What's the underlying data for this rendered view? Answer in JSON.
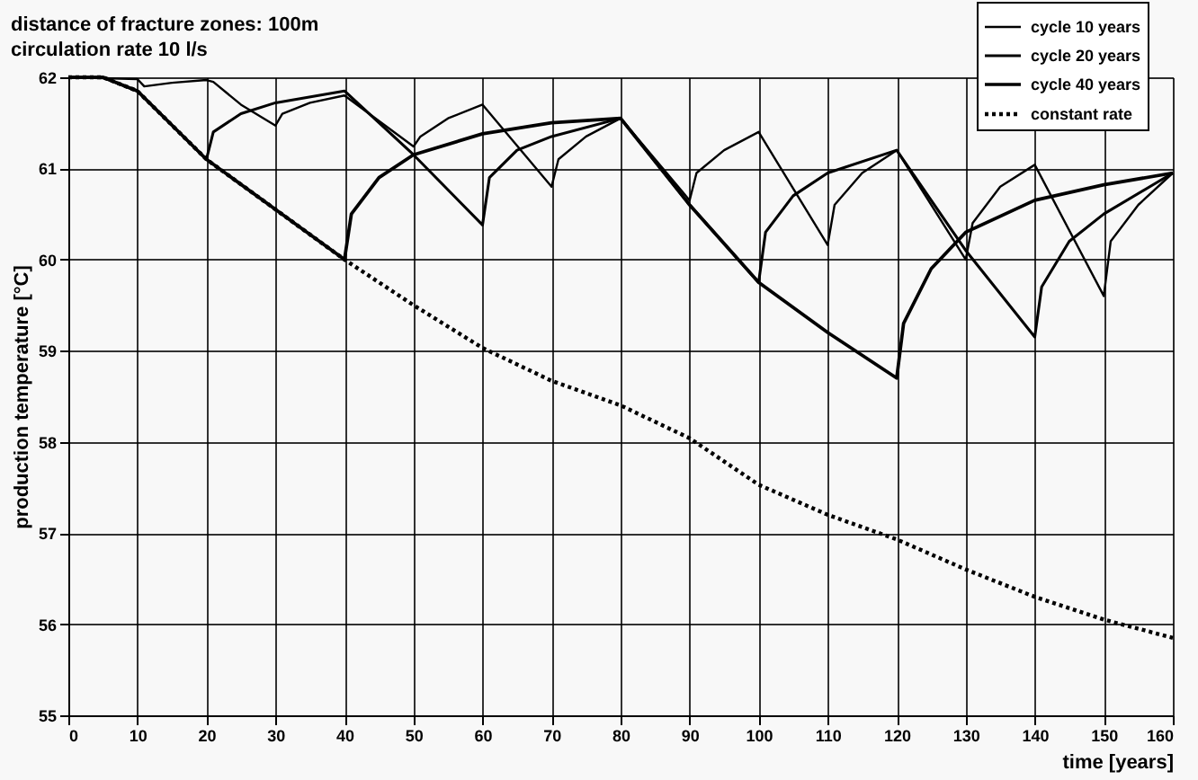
{
  "chart_data": {
    "type": "line",
    "title": "distance of fracture zones: 100m",
    "subtitle": "circulation rate 10 l/s",
    "xlabel": "time [years]",
    "ylabel": "production temperature [°C]",
    "xlim": [
      0,
      160
    ],
    "xticks": [
      0,
      10,
      20,
      30,
      40,
      50,
      60,
      70,
      80,
      90,
      100,
      110,
      120,
      130,
      140,
      150,
      160
    ],
    "ylim": [
      55,
      62
    ],
    "yticks": [
      55,
      56,
      57,
      58,
      59,
      60,
      61,
      62
    ],
    "grid": true,
    "legend": "top right",
    "marker": "none",
    "series": [
      {
        "name": "cycle 10 years",
        "color": "#000000",
        "line_style": "solid",
        "x": [
          0,
          10,
          11,
          15,
          20,
          21,
          25,
          30,
          31,
          35,
          40,
          50,
          51,
          55,
          60,
          70,
          71,
          75,
          80,
          90,
          91,
          95,
          100,
          110,
          111,
          115,
          120,
          130,
          131,
          135,
          140,
          150,
          151,
          155,
          160
        ],
        "values": [
          62,
          61.98,
          61.9,
          61.94,
          61.97,
          61.95,
          61.7,
          61.47,
          61.6,
          61.72,
          61.8,
          61.24,
          61.35,
          61.55,
          61.7,
          60.8,
          61.1,
          61.35,
          61.55,
          60.65,
          60.95,
          61.2,
          61.4,
          60.16,
          60.6,
          60.95,
          61.2,
          60.0,
          60.4,
          60.8,
          61.04,
          59.6,
          60.2,
          60.6,
          60.95
        ]
      },
      {
        "name": "cycle 20 years",
        "color": "#000000",
        "line_style": "solid",
        "x": [
          0,
          5,
          10,
          20,
          21,
          25,
          30,
          40,
          50,
          60,
          61,
          65,
          70,
          80,
          90,
          100,
          101,
          105,
          110,
          120,
          130,
          140,
          141,
          145,
          150,
          160
        ],
        "values": [
          62,
          62,
          61.85,
          61.1,
          61.4,
          61.6,
          61.72,
          61.85,
          61.15,
          60.38,
          60.9,
          61.2,
          61.35,
          61.55,
          60.6,
          59.75,
          60.3,
          60.7,
          60.95,
          61.2,
          60.1,
          59.15,
          59.7,
          60.2,
          60.5,
          60.95
        ]
      },
      {
        "name": "cycle 40 years",
        "color": "#000000",
        "line_style": "solid",
        "x": [
          0,
          5,
          10,
          20,
          30,
          40,
          41,
          45,
          50,
          60,
          70,
          80,
          90,
          100,
          110,
          120,
          121,
          125,
          130,
          140,
          150,
          160
        ],
        "values": [
          62,
          62,
          61.85,
          61.1,
          60.55,
          60.0,
          60.5,
          60.9,
          61.15,
          61.38,
          61.5,
          61.55,
          60.6,
          59.75,
          59.2,
          58.7,
          59.3,
          59.9,
          60.3,
          60.65,
          60.82,
          60.95
        ]
      },
      {
        "name": "constant rate",
        "color": "#000000",
        "line_style": "dotted",
        "x": [
          0,
          5,
          10,
          20,
          30,
          40,
          50,
          60,
          70,
          80,
          90,
          100,
          110,
          120,
          130,
          140,
          150,
          160
        ],
        "values": [
          62,
          62,
          61.85,
          61.1,
          60.55,
          60.0,
          59.5,
          59.03,
          58.67,
          58.4,
          58.04,
          57.53,
          57.2,
          56.93,
          56.6,
          56.3,
          56.05,
          55.85
        ]
      }
    ]
  }
}
